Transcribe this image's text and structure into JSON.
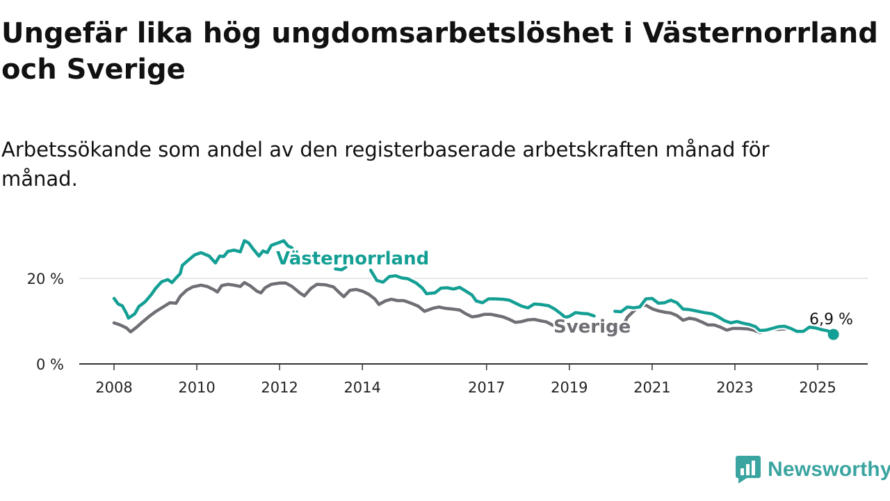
{
  "title": "Ungefär lika hög ungdomsarbetslöshet i Västernorrland och Sverige",
  "subtitle": "Arbetssökande som andel av den registerbaserade arbetskraften månad för månad.",
  "brand": {
    "name": "Newsworthy",
    "icon": "newsworthy-chart-icon",
    "color": "#3aa4a0"
  },
  "chart_data": {
    "type": "line",
    "x_range": [
      2008,
      2025.5
    ],
    "ylim": [
      0,
      30
    ],
    "x_ticks": [
      {
        "value": 2008,
        "label": "2008"
      },
      {
        "value": 2010,
        "label": "2010"
      },
      {
        "value": 2012,
        "label": "2012"
      },
      {
        "value": 2014,
        "label": "2014"
      },
      {
        "value": 2017,
        "label": "2017"
      },
      {
        "value": 2019,
        "label": "2019"
      },
      {
        "value": 2021,
        "label": "2021"
      },
      {
        "value": 2023,
        "label": "2023"
      },
      {
        "value": 2025,
        "label": "2025"
      }
    ],
    "y_ticks": [
      {
        "value": 0,
        "label": "0 %"
      },
      {
        "value": 20,
        "label": "20 %"
      }
    ],
    "grid": true,
    "series": [
      {
        "name": "Västernorrland",
        "color": "#149f94",
        "points": [
          [
            2008.0,
            15.3
          ],
          [
            2008.1,
            14.0
          ],
          [
            2008.2,
            13.6
          ],
          [
            2008.3,
            11.8
          ],
          [
            2008.35,
            10.7
          ],
          [
            2008.5,
            11.7
          ],
          [
            2008.6,
            13.4
          ],
          [
            2008.75,
            14.5
          ],
          [
            2008.9,
            16.2
          ],
          [
            2009.0,
            17.6
          ],
          [
            2009.15,
            19.2
          ],
          [
            2009.3,
            19.7
          ],
          [
            2009.4,
            19.0
          ],
          [
            2009.5,
            20.1
          ],
          [
            2009.6,
            21.1
          ],
          [
            2009.65,
            23.0
          ],
          [
            2009.8,
            24.3
          ],
          [
            2009.95,
            25.5
          ],
          [
            2010.1,
            26.0
          ],
          [
            2010.3,
            25.2
          ],
          [
            2010.45,
            23.6
          ],
          [
            2010.55,
            25.2
          ],
          [
            2010.65,
            25.1
          ],
          [
            2010.75,
            26.3
          ],
          [
            2010.9,
            26.6
          ],
          [
            2011.05,
            26.2
          ],
          [
            2011.15,
            28.8
          ],
          [
            2011.25,
            28.3
          ],
          [
            2011.35,
            27.0
          ],
          [
            2011.5,
            25.2
          ],
          [
            2011.6,
            26.4
          ],
          [
            2011.7,
            26.0
          ],
          [
            2011.8,
            27.7
          ],
          [
            2012.0,
            28.4
          ],
          [
            2012.1,
            28.8
          ],
          [
            2012.2,
            27.6
          ],
          [
            2012.3,
            27.1
          ]
        ],
        "points_2": [
          [
            2013.35,
            22.2
          ],
          [
            2013.5,
            22.0
          ],
          [
            2013.6,
            22.6
          ]
        ],
        "points_3": [
          [
            2014.2,
            21.9
          ],
          [
            2014.35,
            19.5
          ],
          [
            2014.5,
            19.1
          ],
          [
            2014.65,
            20.4
          ],
          [
            2014.8,
            20.6
          ],
          [
            2014.95,
            20.1
          ],
          [
            2015.1,
            19.9
          ],
          [
            2015.3,
            18.9
          ],
          [
            2015.45,
            17.7
          ],
          [
            2015.55,
            16.4
          ],
          [
            2015.75,
            16.6
          ],
          [
            2015.9,
            17.7
          ],
          [
            2016.05,
            17.8
          ],
          [
            2016.2,
            17.5
          ],
          [
            2016.35,
            17.9
          ],
          [
            2016.5,
            17.0
          ],
          [
            2016.65,
            16.1
          ],
          [
            2016.75,
            14.7
          ],
          [
            2016.9,
            14.3
          ],
          [
            2017.05,
            15.2
          ],
          [
            2017.2,
            15.2
          ],
          [
            2017.4,
            15.1
          ],
          [
            2017.55,
            14.9
          ],
          [
            2017.7,
            14.2
          ],
          [
            2017.85,
            13.5
          ],
          [
            2018.0,
            13.1
          ],
          [
            2018.15,
            14.0
          ],
          [
            2018.3,
            13.9
          ],
          [
            2018.5,
            13.6
          ],
          [
            2018.65,
            12.8
          ],
          [
            2018.8,
            11.7
          ],
          [
            2018.9,
            10.9
          ],
          [
            2019.0,
            11.1
          ],
          [
            2019.15,
            12.0
          ],
          [
            2019.3,
            11.8
          ],
          [
            2019.45,
            11.7
          ],
          [
            2019.6,
            11.2
          ]
        ],
        "points_4": [
          [
            2020.1,
            12.3
          ],
          [
            2020.25,
            12.2
          ],
          [
            2020.4,
            13.3
          ],
          [
            2020.55,
            13.1
          ],
          [
            2020.7,
            13.3
          ],
          [
            2020.85,
            15.2
          ],
          [
            2021.0,
            15.3
          ],
          [
            2021.15,
            14.2
          ],
          [
            2021.3,
            14.3
          ],
          [
            2021.45,
            14.9
          ],
          [
            2021.6,
            14.3
          ],
          [
            2021.75,
            12.8
          ],
          [
            2021.9,
            12.7
          ],
          [
            2022.05,
            12.4
          ],
          [
            2022.25,
            12.0
          ],
          [
            2022.45,
            11.7
          ],
          [
            2022.6,
            11.0
          ],
          [
            2022.75,
            10.1
          ],
          [
            2022.9,
            9.6
          ],
          [
            2023.05,
            9.9
          ],
          [
            2023.2,
            9.5
          ],
          [
            2023.35,
            9.2
          ],
          [
            2023.5,
            8.7
          ],
          [
            2023.6,
            7.8
          ],
          [
            2023.75,
            7.9
          ],
          [
            2023.9,
            8.3
          ],
          [
            2024.05,
            8.7
          ],
          [
            2024.2,
            8.8
          ],
          [
            2024.35,
            8.3
          ],
          [
            2024.5,
            7.6
          ],
          [
            2024.65,
            7.6
          ],
          [
            2024.8,
            8.6
          ],
          [
            2024.95,
            8.4
          ],
          [
            2025.1,
            8.0
          ],
          [
            2025.25,
            7.7
          ],
          [
            2025.38,
            6.9
          ]
        ]
      },
      {
        "name": "Sverige",
        "color": "#6e6e74",
        "points": [
          [
            2008.0,
            9.6
          ],
          [
            2008.15,
            9.1
          ],
          [
            2008.3,
            8.4
          ],
          [
            2008.4,
            7.5
          ],
          [
            2008.55,
            8.6
          ],
          [
            2008.7,
            9.9
          ],
          [
            2008.85,
            11.1
          ],
          [
            2009.0,
            12.2
          ],
          [
            2009.2,
            13.4
          ],
          [
            2009.35,
            14.3
          ],
          [
            2009.5,
            14.2
          ],
          [
            2009.6,
            15.8
          ],
          [
            2009.75,
            17.2
          ],
          [
            2009.9,
            18.0
          ],
          [
            2010.1,
            18.4
          ],
          [
            2010.25,
            18.1
          ],
          [
            2010.4,
            17.4
          ],
          [
            2010.5,
            16.8
          ],
          [
            2010.6,
            18.3
          ],
          [
            2010.75,
            18.6
          ],
          [
            2010.9,
            18.4
          ],
          [
            2011.05,
            18.1
          ],
          [
            2011.15,
            19.0
          ],
          [
            2011.3,
            18.2
          ],
          [
            2011.45,
            17.0
          ],
          [
            2011.55,
            16.6
          ],
          [
            2011.65,
            17.8
          ],
          [
            2011.8,
            18.6
          ],
          [
            2012.0,
            18.9
          ],
          [
            2012.15,
            18.9
          ],
          [
            2012.3,
            18.1
          ],
          [
            2012.5,
            16.5
          ],
          [
            2012.6,
            15.9
          ],
          [
            2012.75,
            17.6
          ],
          [
            2012.9,
            18.6
          ],
          [
            2013.1,
            18.5
          ],
          [
            2013.3,
            18.0
          ],
          [
            2013.45,
            16.6
          ],
          [
            2013.55,
            15.7
          ],
          [
            2013.7,
            17.2
          ],
          [
            2013.85,
            17.4
          ],
          [
            2014.0,
            17.0
          ],
          [
            2014.15,
            16.3
          ],
          [
            2014.3,
            15.2
          ],
          [
            2014.4,
            13.9
          ],
          [
            2014.55,
            14.7
          ],
          [
            2014.7,
            15.1
          ],
          [
            2014.85,
            14.8
          ],
          [
            2015.0,
            14.8
          ],
          [
            2015.2,
            14.1
          ],
          [
            2015.35,
            13.5
          ],
          [
            2015.5,
            12.3
          ],
          [
            2015.7,
            13.0
          ],
          [
            2015.85,
            13.3
          ],
          [
            2016.0,
            13.0
          ],
          [
            2016.2,
            12.8
          ],
          [
            2016.35,
            12.6
          ],
          [
            2016.5,
            11.7
          ],
          [
            2016.65,
            11.0
          ],
          [
            2016.8,
            11.2
          ],
          [
            2016.95,
            11.6
          ],
          [
            2017.1,
            11.6
          ],
          [
            2017.25,
            11.3
          ],
          [
            2017.4,
            11.0
          ],
          [
            2017.55,
            10.4
          ],
          [
            2017.7,
            9.7
          ],
          [
            2017.85,
            9.9
          ],
          [
            2018.0,
            10.3
          ],
          [
            2018.15,
            10.4
          ],
          [
            2018.3,
            10.1
          ],
          [
            2018.45,
            9.8
          ],
          [
            2018.55,
            9.3
          ],
          [
            2018.7,
            8.5
          ],
          [
            2018.85,
            8.8
          ]
        ],
        "points_2": [
          [
            2020.3,
            8.9
          ],
          [
            2020.4,
            10.9
          ],
          [
            2020.55,
            12.3
          ],
          [
            2020.7,
            13.6
          ],
          [
            2020.85,
            13.7
          ],
          [
            2021.0,
            12.9
          ],
          [
            2021.15,
            12.4
          ],
          [
            2021.3,
            12.1
          ],
          [
            2021.45,
            11.9
          ],
          [
            2021.6,
            11.3
          ],
          [
            2021.75,
            10.2
          ],
          [
            2021.9,
            10.7
          ],
          [
            2022.05,
            10.4
          ],
          [
            2022.2,
            9.8
          ],
          [
            2022.35,
            9.1
          ],
          [
            2022.5,
            9.1
          ],
          [
            2022.65,
            8.6
          ],
          [
            2022.8,
            7.9
          ],
          [
            2022.95,
            8.3
          ],
          [
            2023.1,
            8.3
          ],
          [
            2023.3,
            8.2
          ],
          [
            2023.45,
            7.9
          ],
          [
            2023.6,
            7.3
          ],
          [
            2023.75,
            7.8
          ],
          [
            2023.9,
            8.0
          ],
          [
            2024.05,
            8.1
          ],
          [
            2024.2,
            8.2
          ],
          [
            2024.35,
            8.2
          ],
          [
            2024.5,
            7.6
          ],
          [
            2024.65,
            7.6
          ],
          [
            2024.8,
            8.2
          ],
          [
            2024.95,
            8.2
          ],
          [
            2025.1,
            8.1
          ],
          [
            2025.25,
            7.8
          ],
          [
            2025.38,
            7.1
          ]
        ]
      }
    ],
    "annotations": {
      "series_label_1": "Västernorrland",
      "series_label_2": "Sverige",
      "end_value_label": "6,9 %",
      "end_point": [
        2025.38,
        6.9
      ]
    }
  }
}
